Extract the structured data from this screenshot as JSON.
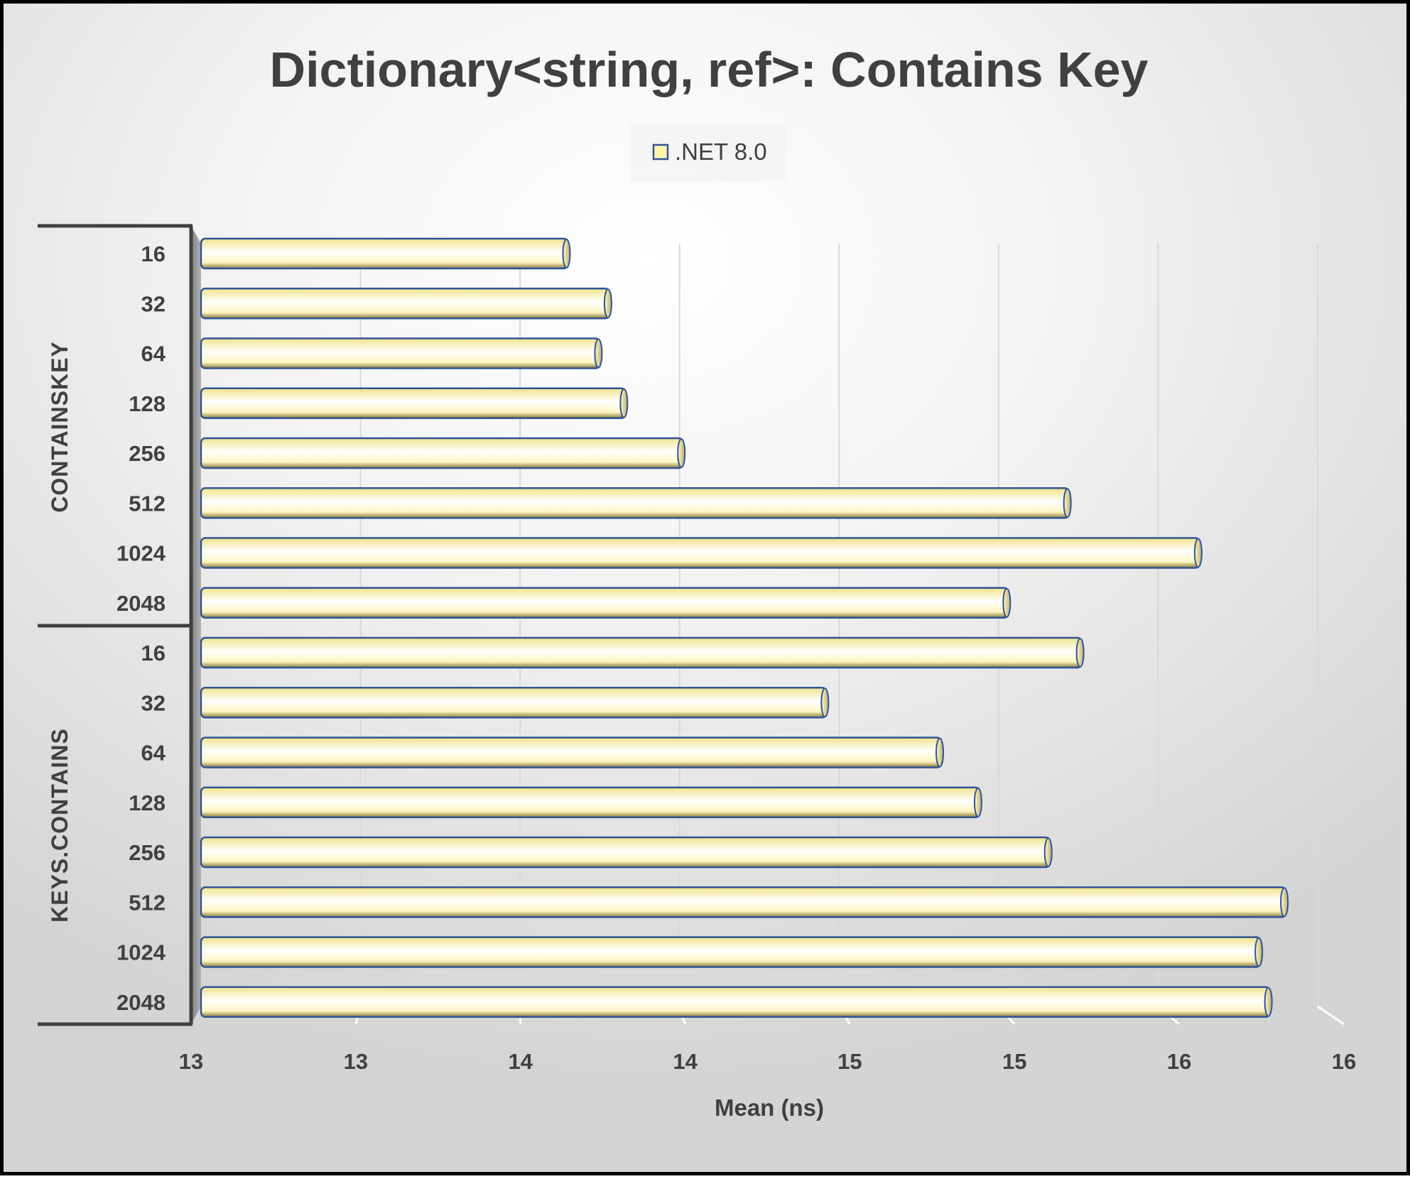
{
  "chart_data": {
    "type": "bar",
    "orientation": "horizontal",
    "title": "Dictionary<string, ref>: Contains Key",
    "xlabel": "Mean (ns)",
    "ylabel": "",
    "legend": {
      "position": "top",
      "entries": [
        ".NET 8.0"
      ]
    },
    "grid": true,
    "xlim": [
      12.75,
      16.25
    ],
    "x_tick_labels": [
      "13",
      "13",
      "14",
      "14",
      "15",
      "15",
      "16",
      "16"
    ],
    "groups": [
      {
        "name": "CONTAINSKEY",
        "categories": [
          "16",
          "32",
          "64",
          "128",
          "256",
          "512",
          "1024",
          "2048"
        ]
      },
      {
        "name": "KEYS.CONTAINS",
        "categories": [
          "16",
          "32",
          "64",
          "128",
          "256",
          "512",
          "1024",
          "2048"
        ]
      }
    ],
    "series": [
      {
        "name": ".NET 8.0",
        "values": [
          13.9,
          14.03,
          14.0,
          14.08,
          14.26,
          15.47,
          15.88,
          15.28,
          15.51,
          14.71,
          15.07,
          15.19,
          15.41,
          16.15,
          16.07,
          16.1
        ]
      }
    ],
    "colors": {
      "bar_fill": "#fff3b0",
      "bar_edge": "#2f5597",
      "text": "#404040",
      "grid": "#d9d9d9",
      "frame": "#000000"
    }
  }
}
